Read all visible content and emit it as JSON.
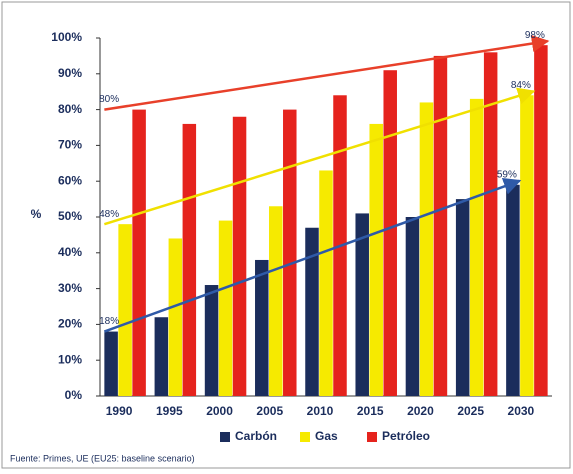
{
  "chart_data": {
    "type": "bar",
    "y_label": "%",
    "source": "Fuente: Primes, UE (EU25: baseline scenario)",
    "categories": [
      "1990",
      "1995",
      "2000",
      "2005",
      "2010",
      "2015",
      "2020",
      "2025",
      "2030"
    ],
    "series": [
      {
        "name": "Carbón",
        "color": "#1b2d5c",
        "arrow_color": "#2f5aa8",
        "values": [
          18,
          22,
          31,
          38,
          47,
          51,
          50,
          55,
          59
        ],
        "value_labels": [
          "18%",
          null,
          null,
          null,
          null,
          null,
          null,
          null,
          "59%"
        ]
      },
      {
        "name": "Gas",
        "color": "#f6ea00",
        "arrow_color": "#f0e000",
        "values": [
          48,
          44,
          49,
          53,
          63,
          76,
          82,
          83,
          84
        ],
        "value_labels": [
          "48%",
          null,
          null,
          null,
          null,
          null,
          null,
          null,
          "84%"
        ]
      },
      {
        "name": "Petróleo",
        "color": "#e5231d",
        "arrow_color": "#e8402a",
        "values": [
          80,
          76,
          78,
          80,
          84,
          91,
          95,
          96,
          98
        ],
        "value_labels": [
          "80%",
          null,
          null,
          null,
          null,
          null,
          null,
          null,
          "98%"
        ]
      }
    ],
    "ylim": [
      0,
      100
    ],
    "yticks": [
      {
        "value": 0,
        "label": "0%"
      },
      {
        "value": 10,
        "label": "10%"
      },
      {
        "value": 20,
        "label": "20%"
      },
      {
        "value": 30,
        "label": "30%"
      },
      {
        "value": 40,
        "label": "40%"
      },
      {
        "value": 50,
        "label": "50%"
      },
      {
        "value": 60,
        "label": "60%"
      },
      {
        "value": 70,
        "label": "70%"
      },
      {
        "value": 80,
        "label": "80%"
      },
      {
        "value": 90,
        "label": "90%"
      },
      {
        "value": 100,
        "label": "100%"
      }
    ],
    "grid": false,
    "legend": "bottom"
  }
}
